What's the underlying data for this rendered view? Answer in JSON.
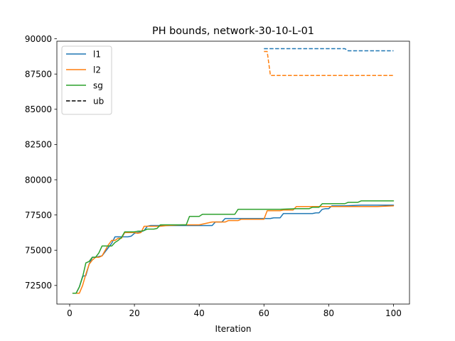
{
  "chart_data": {
    "type": "line",
    "title": "PH bounds, network-30-10-L-01",
    "xlabel": "Iteration",
    "ylabel": "",
    "xlim": [
      -3.95,
      104.95
    ],
    "ylim": [
      71180,
      89830
    ],
    "xticks": [
      0,
      20,
      40,
      60,
      80,
      100
    ],
    "yticks": [
      72500,
      75000,
      77500,
      80000,
      82500,
      85000,
      87500,
      90000
    ],
    "grid": false,
    "legend": "upper left",
    "legend_entries": [
      {
        "name": "l1",
        "color": "#1f77b4",
        "dash": "solid"
      },
      {
        "name": "l2",
        "color": "#ff7f0e",
        "dash": "solid"
      },
      {
        "name": "sg",
        "color": "#2ca02c",
        "dash": "solid"
      },
      {
        "name": "ub",
        "color": "#000000",
        "dash": "dashed"
      }
    ],
    "series": [
      {
        "name": "l1",
        "color": "#1f77b4",
        "dash": "solid",
        "points": [
          [
            1,
            71950
          ],
          [
            2,
            71950
          ],
          [
            3,
            72400
          ],
          [
            4,
            73150
          ],
          [
            5,
            73200
          ],
          [
            6,
            74000
          ],
          [
            7,
            74500
          ],
          [
            8,
            74500
          ],
          [
            9,
            74550
          ],
          [
            10,
            74600
          ],
          [
            11,
            74900
          ],
          [
            12,
            75200
          ],
          [
            13,
            75500
          ],
          [
            14,
            75950
          ],
          [
            15,
            75950
          ],
          [
            16,
            75950
          ],
          [
            17,
            75950
          ],
          [
            18,
            75950
          ],
          [
            19,
            76000
          ],
          [
            20,
            76200
          ],
          [
            21,
            76250
          ],
          [
            22,
            76300
          ],
          [
            23,
            76400
          ],
          [
            24,
            76700
          ],
          [
            25,
            76750
          ],
          [
            26,
            76750
          ],
          [
            27,
            76750
          ],
          [
            28,
            76750
          ],
          [
            29,
            76750
          ],
          [
            30,
            76750
          ],
          [
            35,
            76750
          ],
          [
            40,
            76750
          ],
          [
            44,
            76750
          ],
          [
            45,
            77000
          ],
          [
            47,
            77000
          ],
          [
            48,
            77250
          ],
          [
            50,
            77250
          ],
          [
            55,
            77250
          ],
          [
            60,
            77250
          ],
          [
            62,
            77250
          ],
          [
            63,
            77300
          ],
          [
            65,
            77300
          ],
          [
            66,
            77600
          ],
          [
            70,
            77600
          ],
          [
            75,
            77600
          ],
          [
            76,
            77650
          ],
          [
            77,
            77650
          ],
          [
            78,
            77900
          ],
          [
            79,
            77950
          ],
          [
            80,
            77950
          ],
          [
            81,
            78150
          ],
          [
            85,
            78150
          ],
          [
            90,
            78200
          ],
          [
            95,
            78200
          ],
          [
            100,
            78200
          ]
        ]
      },
      {
        "name": "l2",
        "color": "#ff7f0e",
        "dash": "solid",
        "points": [
          [
            1,
            71950
          ],
          [
            2,
            71950
          ],
          [
            3,
            71950
          ],
          [
            4,
            72500
          ],
          [
            5,
            73300
          ],
          [
            6,
            74000
          ],
          [
            7,
            74300
          ],
          [
            8,
            74500
          ],
          [
            9,
            74500
          ],
          [
            10,
            74600
          ],
          [
            11,
            75000
          ],
          [
            12,
            75400
          ],
          [
            13,
            75700
          ],
          [
            14,
            75700
          ],
          [
            15,
            75850
          ],
          [
            16,
            75850
          ],
          [
            17,
            76250
          ],
          [
            18,
            76250
          ],
          [
            19,
            76250
          ],
          [
            20,
            76250
          ],
          [
            21,
            76200
          ],
          [
            22,
            76250
          ],
          [
            23,
            76700
          ],
          [
            24,
            76700
          ],
          [
            25,
            76700
          ],
          [
            26,
            76700
          ],
          [
            27,
            76700
          ],
          [
            28,
            76700
          ],
          [
            30,
            76750
          ],
          [
            35,
            76800
          ],
          [
            40,
            76800
          ],
          [
            42,
            76900
          ],
          [
            44,
            77000
          ],
          [
            48,
            77000
          ],
          [
            49,
            77100
          ],
          [
            52,
            77100
          ],
          [
            53,
            77200
          ],
          [
            59,
            77200
          ],
          [
            60,
            77200
          ],
          [
            61,
            77800
          ],
          [
            62,
            77800
          ],
          [
            65,
            77800
          ],
          [
            66,
            77850
          ],
          [
            69,
            77850
          ],
          [
            70,
            78100
          ],
          [
            75,
            78100
          ],
          [
            80,
            78100
          ],
          [
            85,
            78100
          ],
          [
            90,
            78100
          ],
          [
            95,
            78100
          ],
          [
            100,
            78150
          ]
        ]
      },
      {
        "name": "sg",
        "color": "#2ca02c",
        "dash": "solid",
        "points": [
          [
            1,
            71950
          ],
          [
            2,
            71950
          ],
          [
            3,
            72400
          ],
          [
            4,
            73100
          ],
          [
            5,
            74100
          ],
          [
            6,
            74200
          ],
          [
            7,
            74500
          ],
          [
            8,
            74500
          ],
          [
            9,
            74800
          ],
          [
            10,
            75300
          ],
          [
            11,
            75300
          ],
          [
            12,
            75300
          ],
          [
            13,
            75300
          ],
          [
            14,
            75550
          ],
          [
            15,
            75700
          ],
          [
            16,
            75900
          ],
          [
            17,
            76300
          ],
          [
            18,
            76300
          ],
          [
            19,
            76300
          ],
          [
            20,
            76300
          ],
          [
            21,
            76350
          ],
          [
            22,
            76350
          ],
          [
            23,
            76400
          ],
          [
            24,
            76500
          ],
          [
            25,
            76500
          ],
          [
            26,
            76500
          ],
          [
            27,
            76550
          ],
          [
            28,
            76800
          ],
          [
            29,
            76800
          ],
          [
            30,
            76800
          ],
          [
            35,
            76800
          ],
          [
            36,
            76800
          ],
          [
            37,
            77400
          ],
          [
            38,
            77400
          ],
          [
            40,
            77400
          ],
          [
            41,
            77550
          ],
          [
            45,
            77550
          ],
          [
            50,
            77550
          ],
          [
            51,
            77550
          ],
          [
            52,
            77900
          ],
          [
            55,
            77900
          ],
          [
            60,
            77900
          ],
          [
            65,
            77900
          ],
          [
            70,
            77950
          ],
          [
            74,
            77950
          ],
          [
            75,
            78050
          ],
          [
            77,
            78050
          ],
          [
            78,
            78300
          ],
          [
            80,
            78300
          ],
          [
            85,
            78300
          ],
          [
            86,
            78400
          ],
          [
            89,
            78400
          ],
          [
            90,
            78500
          ],
          [
            95,
            78500
          ],
          [
            100,
            78500
          ]
        ]
      },
      {
        "name": "ub (l1)",
        "color": "#1f77b4",
        "dash": "dashed",
        "points": [
          [
            60,
            89300
          ],
          [
            65,
            89300
          ],
          [
            70,
            89300
          ],
          [
            75,
            89300
          ],
          [
            80,
            89300
          ],
          [
            85,
            89300
          ],
          [
            86,
            89150
          ],
          [
            90,
            89150
          ],
          [
            95,
            89150
          ],
          [
            100,
            89150
          ]
        ]
      },
      {
        "name": "ub (l2)",
        "color": "#ff7f0e",
        "dash": "dashed",
        "points": [
          [
            60,
            89100
          ],
          [
            61,
            89100
          ],
          [
            62,
            87400
          ],
          [
            65,
            87400
          ],
          [
            70,
            87400
          ],
          [
            75,
            87400
          ],
          [
            80,
            87400
          ],
          [
            85,
            87400
          ],
          [
            90,
            87400
          ],
          [
            95,
            87400
          ],
          [
            100,
            87400
          ]
        ]
      }
    ]
  }
}
